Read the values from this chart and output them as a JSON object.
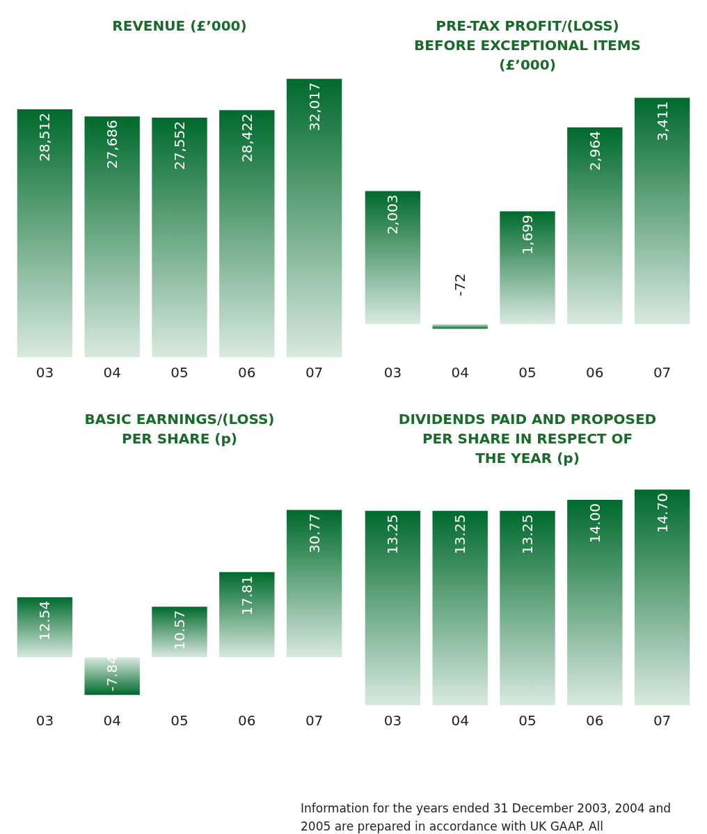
{
  "chart_data": [
    {
      "type": "bar",
      "title": "REVENUE (£’000)",
      "categories": [
        "03",
        "04",
        "05",
        "06",
        "07"
      ],
      "values": [
        28512,
        27686,
        27552,
        28422,
        32017
      ],
      "value_labels": [
        "28,512",
        "27,686",
        "27,552",
        "28,422",
        "32,017"
      ],
      "color": "#006a2c"
    },
    {
      "type": "bar",
      "title": "PRE-TAX PROFIT/(LOSS)\nBEFORE EXCEPTIONAL ITEMS\n(£’000)",
      "categories": [
        "03",
        "04",
        "05",
        "06",
        "07"
      ],
      "values": [
        2003,
        -72,
        1699,
        2964,
        3411
      ],
      "value_labels": [
        "2,003",
        "-72",
        "1,699",
        "2,964",
        "3,411"
      ],
      "color": "#006a2c"
    },
    {
      "type": "bar",
      "title": "BASIC EARNINGS/(LOSS)\nPER SHARE (p)",
      "categories": [
        "03",
        "04",
        "05",
        "06",
        "07"
      ],
      "values": [
        12.54,
        -7.84,
        10.57,
        17.81,
        30.77
      ],
      "value_labels": [
        "12.54",
        "-7.84",
        "10.57",
        "17.81",
        "30.77"
      ],
      "color": "#006a2c"
    },
    {
      "type": "bar",
      "title": "DIVIDENDS PAID AND PROPOSED\nPER SHARE IN RESPECT OF\nTHE YEAR (p)",
      "categories": [
        "03",
        "04",
        "05",
        "06",
        "07"
      ],
      "values": [
        13.25,
        13.25,
        13.25,
        14.0,
        14.7
      ],
      "value_labels": [
        "13.25",
        "13.25",
        "13.25",
        "14.00",
        "14.70"
      ],
      "color": "#006a2c",
      "annotations": [
        "Information for the years ended 31 December 2003, 2004 and 2005 are prepared in accordance with UK GAAP. All"
      ]
    }
  ]
}
